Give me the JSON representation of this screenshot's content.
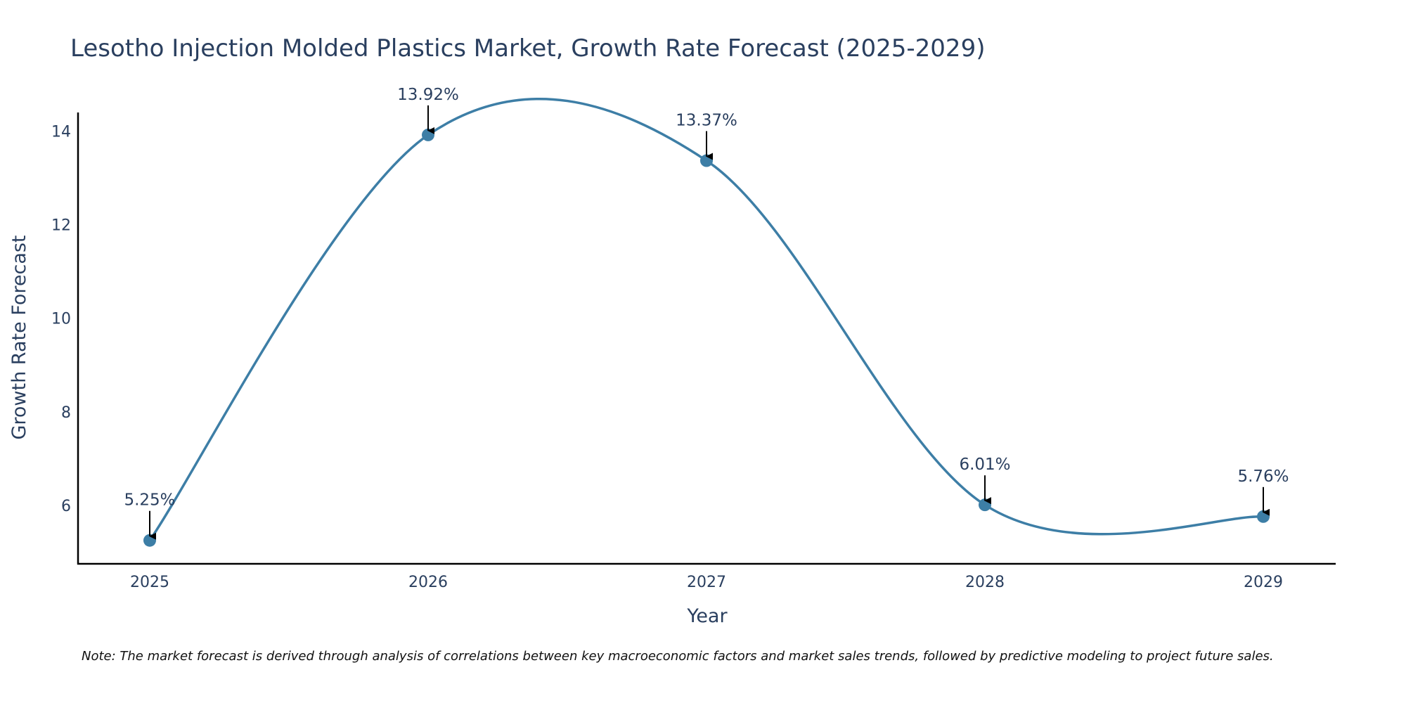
{
  "chart_data": {
    "type": "line",
    "title": "Lesotho Injection Molded Plastics Market, Growth Rate Forecast (2025-2029)",
    "xlabel": "Year",
    "ylabel": "Growth Rate Forecast",
    "categories": [
      "2025",
      "2026",
      "2027",
      "2028",
      "2029"
    ],
    "series": [
      {
        "name": "Growth Rate Forecast",
        "values": [
          5.25,
          13.92,
          13.37,
          6.01,
          5.76
        ],
        "labels": [
          "5.25%",
          "13.92%",
          "13.37%",
          "6.01%",
          "5.76%"
        ],
        "color": "#3d7ea6"
      }
    ],
    "yticks": [
      6,
      8,
      10,
      12,
      14
    ],
    "ytick_labels": [
      "6",
      "8",
      "10",
      "12",
      "14"
    ],
    "ylim": [
      4.75,
      14.4
    ],
    "grid": false,
    "line_shape": "spline",
    "annotation_arrow_color": "#000000",
    "note": "Note: The market forecast is derived through analysis of correlations between key macroeconomic factors and market sales trends, followed by predictive modeling to project future sales."
  }
}
